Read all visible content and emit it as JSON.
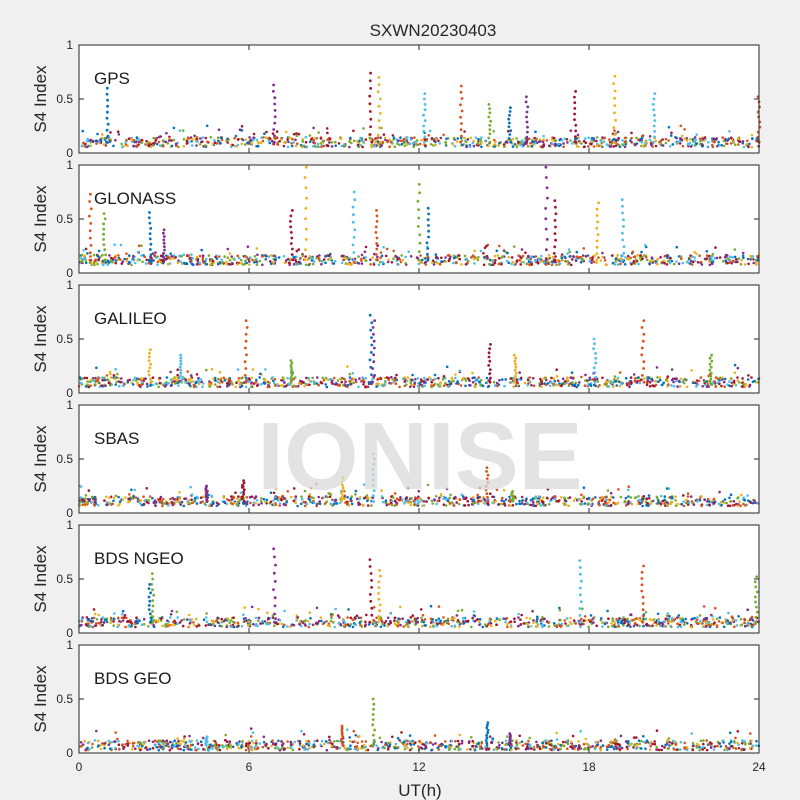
{
  "chart_data": {
    "type": "scatter",
    "title": "SXWN20230403",
    "xlabel": "UT(h)",
    "ylabel": "S4 Index",
    "xlim": [
      0,
      24
    ],
    "ylim": [
      0,
      1
    ],
    "x_ticks": [
      "0",
      "6",
      "12",
      "18",
      "24"
    ],
    "y_ticks": [
      "0",
      "0.5",
      "1"
    ],
    "watermark": "IONISE",
    "series_colors": [
      "#0072bd",
      "#d95319",
      "#edb120",
      "#7e2f8e",
      "#77ac30",
      "#4dbeee",
      "#a2142f"
    ],
    "panels": [
      {
        "label": "GPS",
        "baseline": 0.1,
        "spikes": [
          {
            "x": 1.0,
            "y": 0.6
          },
          {
            "x": 6.9,
            "y": 0.63
          },
          {
            "x": 10.3,
            "y": 0.74
          },
          {
            "x": 10.6,
            "y": 0.7
          },
          {
            "x": 12.2,
            "y": 0.55
          },
          {
            "x": 13.5,
            "y": 0.62
          },
          {
            "x": 14.5,
            "y": 0.45
          },
          {
            "x": 15.2,
            "y": 0.42
          },
          {
            "x": 15.8,
            "y": 0.52
          },
          {
            "x": 17.5,
            "y": 0.57
          },
          {
            "x": 18.9,
            "y": 0.71
          },
          {
            "x": 20.3,
            "y": 0.55
          },
          {
            "x": 24.0,
            "y": 0.52
          }
        ]
      },
      {
        "label": "GLONASS",
        "baseline": 0.12,
        "spikes": [
          {
            "x": 0.4,
            "y": 0.73
          },
          {
            "x": 0.9,
            "y": 0.55
          },
          {
            "x": 2.5,
            "y": 0.56
          },
          {
            "x": 3.0,
            "y": 0.4
          },
          {
            "x": 7.5,
            "y": 0.58
          },
          {
            "x": 8.0,
            "y": 0.98
          },
          {
            "x": 9.7,
            "y": 0.75
          },
          {
            "x": 10.5,
            "y": 0.58
          },
          {
            "x": 12.0,
            "y": 0.82
          },
          {
            "x": 12.3,
            "y": 0.6
          },
          {
            "x": 16.5,
            "y": 0.98
          },
          {
            "x": 16.8,
            "y": 0.67
          },
          {
            "x": 18.3,
            "y": 0.65
          },
          {
            "x": 19.2,
            "y": 0.68
          }
        ]
      },
      {
        "label": "GALILEO",
        "baseline": 0.1,
        "spikes": [
          {
            "x": 2.5,
            "y": 0.4
          },
          {
            "x": 3.6,
            "y": 0.35
          },
          {
            "x": 5.9,
            "y": 0.67
          },
          {
            "x": 7.5,
            "y": 0.3
          },
          {
            "x": 10.3,
            "y": 0.72
          },
          {
            "x": 10.4,
            "y": 0.67
          },
          {
            "x": 14.5,
            "y": 0.45
          },
          {
            "x": 15.4,
            "y": 0.35
          },
          {
            "x": 18.2,
            "y": 0.5
          },
          {
            "x": 19.9,
            "y": 0.67
          },
          {
            "x": 22.3,
            "y": 0.35
          }
        ]
      },
      {
        "label": "SBAS",
        "baseline": 0.11,
        "spikes": [
          {
            "x": 4.5,
            "y": 0.25
          },
          {
            "x": 5.8,
            "y": 0.3
          },
          {
            "x": 9.3,
            "y": 0.33
          },
          {
            "x": 10.4,
            "y": 0.55
          },
          {
            "x": 14.4,
            "y": 0.42
          },
          {
            "x": 15.3,
            "y": 0.2
          }
        ]
      },
      {
        "label": "BDS NGEO",
        "baseline": 0.1,
        "spikes": [
          {
            "x": 2.6,
            "y": 0.55
          },
          {
            "x": 2.5,
            "y": 0.45
          },
          {
            "x": 6.9,
            "y": 0.78
          },
          {
            "x": 10.3,
            "y": 0.68
          },
          {
            "x": 10.6,
            "y": 0.58
          },
          {
            "x": 17.7,
            "y": 0.67
          },
          {
            "x": 19.9,
            "y": 0.62
          },
          {
            "x": 23.9,
            "y": 0.52
          }
        ]
      },
      {
        "label": "BDS GEO",
        "baseline": 0.07,
        "spikes": [
          {
            "x": 4.5,
            "y": 0.15
          },
          {
            "x": 9.3,
            "y": 0.25
          },
          {
            "x": 10.4,
            "y": 0.5
          },
          {
            "x": 14.4,
            "y": 0.28
          },
          {
            "x": 15.2,
            "y": 0.18
          }
        ]
      }
    ]
  }
}
